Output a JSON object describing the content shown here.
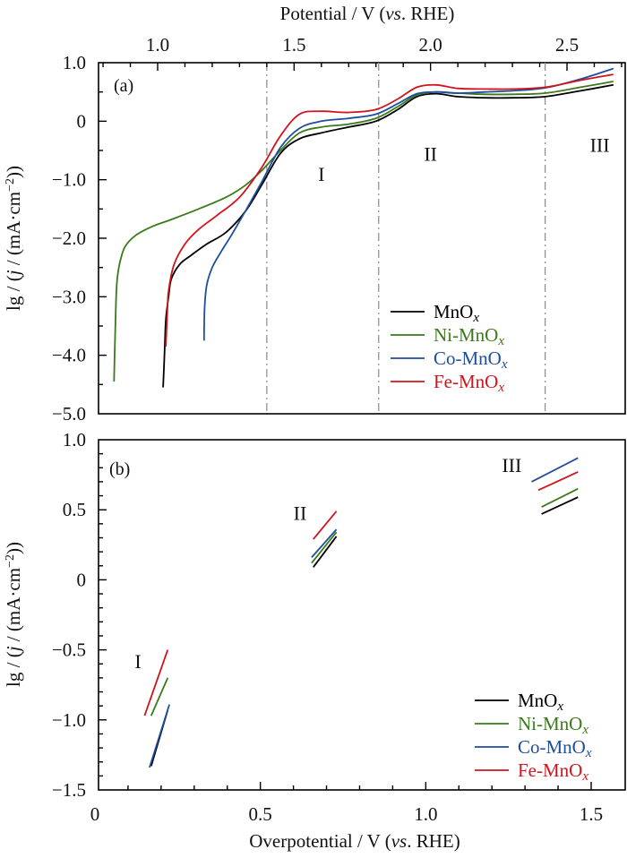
{
  "chart_data": [
    {
      "panel": "(a)",
      "type": "line",
      "top_xlabel": "Potential / V (vs. RHE)",
      "ylabel": "lg / (j / (mA·cm⁻²))",
      "xlim": [
        0.78,
        2.72
      ],
      "ylim": [
        -5.0,
        1.0
      ],
      "xticks": [
        1.0,
        1.5,
        2.0,
        2.5
      ],
      "xtick_labels": [
        "1.0",
        "1.5",
        "2.0",
        "2.5"
      ],
      "yticks": [
        1.0,
        0,
        -1.0,
        -2.0,
        -3.0,
        -4.0,
        -5.0
      ],
      "ytick_labels": [
        "1.0",
        "0",
        "−1.0",
        "−2.0",
        "−3.0",
        "−4.0",
        "−5.0"
      ],
      "region_dividers": [
        1.4,
        1.81,
        2.42
      ],
      "region_labels": [
        {
          "text": "I",
          "x": 1.6,
          "y": -0.9
        },
        {
          "text": "II",
          "x": 2.0,
          "y": -0.55
        },
        {
          "text": "III",
          "x": 2.62,
          "y": -0.4
        }
      ],
      "legend": {
        "position": "lower-right",
        "entries": [
          "MnOx",
          "Ni-MnOx",
          "Co-MnOx",
          "Fe-MnOx"
        ]
      },
      "series": [
        {
          "name": "MnOx",
          "color": "#000000",
          "x": [
            1.02,
            1.025,
            1.03,
            1.04,
            1.05,
            1.08,
            1.12,
            1.18,
            1.25,
            1.32,
            1.38,
            1.45,
            1.52,
            1.6,
            1.7,
            1.8,
            1.88,
            1.95,
            2.02,
            2.1,
            2.2,
            2.3,
            2.42,
            2.55,
            2.67
          ],
          "y": [
            -4.55,
            -4.0,
            -3.4,
            -3.0,
            -2.7,
            -2.45,
            -2.3,
            -2.1,
            -1.9,
            -1.55,
            -1.1,
            -0.55,
            -0.3,
            -0.2,
            -0.1,
            0.0,
            0.2,
            0.42,
            0.47,
            0.42,
            0.4,
            0.4,
            0.42,
            0.52,
            0.62
          ]
        },
        {
          "name": "Ni-MnOx",
          "color": "#3a7a1a",
          "x": [
            0.84,
            0.845,
            0.85,
            0.86,
            0.88,
            0.92,
            0.98,
            1.05,
            1.15,
            1.25,
            1.32,
            1.38,
            1.45,
            1.52,
            1.6,
            1.7,
            1.8,
            1.88,
            1.95,
            2.02,
            2.1,
            2.2,
            2.3,
            2.42,
            2.55,
            2.67
          ],
          "y": [
            -4.45,
            -3.5,
            -2.8,
            -2.45,
            -2.15,
            -1.95,
            -1.8,
            -1.68,
            -1.5,
            -1.3,
            -1.1,
            -0.85,
            -0.5,
            -0.2,
            -0.1,
            -0.05,
            0.05,
            0.25,
            0.45,
            0.5,
            0.48,
            0.46,
            0.46,
            0.48,
            0.58,
            0.68
          ]
        },
        {
          "name": "Co-MnOx",
          "color": "#1f4e9c",
          "x": [
            1.17,
            1.172,
            1.18,
            1.2,
            1.23,
            1.27,
            1.32,
            1.38,
            1.45,
            1.52,
            1.6,
            1.7,
            1.8,
            1.88,
            1.95,
            2.02,
            2.1,
            2.2,
            2.3,
            2.42,
            2.55,
            2.67
          ],
          "y": [
            -3.75,
            -3.2,
            -2.8,
            -2.5,
            -2.25,
            -1.95,
            -1.55,
            -1.05,
            -0.45,
            -0.12,
            0.0,
            0.05,
            0.12,
            0.3,
            0.47,
            0.5,
            0.48,
            0.5,
            0.52,
            0.57,
            0.72,
            0.9
          ]
        },
        {
          "name": "Fe-MnOx",
          "color": "#d0141c",
          "x": [
            1.03,
            1.035,
            1.04,
            1.06,
            1.1,
            1.15,
            1.22,
            1.3,
            1.38,
            1.45,
            1.52,
            1.6,
            1.7,
            1.8,
            1.88,
            1.95,
            2.02,
            2.1,
            2.2,
            2.3,
            2.42,
            2.55,
            2.67
          ],
          "y": [
            -3.85,
            -3.3,
            -2.9,
            -2.45,
            -2.1,
            -1.85,
            -1.6,
            -1.3,
            -0.8,
            -0.25,
            0.12,
            0.17,
            0.15,
            0.2,
            0.38,
            0.58,
            0.62,
            0.56,
            0.55,
            0.55,
            0.58,
            0.7,
            0.8
          ]
        }
      ]
    },
    {
      "panel": "(b)",
      "type": "line",
      "xlabel": "Overpotential / V (vs. RHE)",
      "ylabel": "lg / (j / (mA·cm⁻²))",
      "xlim": [
        0,
        1.6
      ],
      "ylim": [
        -1.5,
        1.0
      ],
      "xticks": [
        0,
        0.5,
        1.0,
        1.5
      ],
      "xtick_labels": [
        "0",
        "0.5",
        "1.0",
        "1.5"
      ],
      "yticks": [
        1.0,
        0.5,
        0,
        -0.5,
        -1.0,
        -1.5
      ],
      "ytick_labels": [
        "1.0",
        "0.5",
        "0",
        "−0.5",
        "−1.0",
        "−1.5"
      ],
      "region_labels": [
        {
          "text": "I",
          "x": 0.13,
          "y": -0.58
        },
        {
          "text": "II",
          "x": 0.62,
          "y": 0.48
        },
        {
          "text": "III",
          "x": 1.26,
          "y": 0.82
        }
      ],
      "legend": {
        "position": "lower-right",
        "entries": [
          "MnOx",
          "Ni-MnOx",
          "Co-MnOx",
          "Fe-MnOx"
        ]
      },
      "series": [
        {
          "name": "MnOx",
          "color": "#000000",
          "segments": [
            {
              "region": "I",
              "x": [
                0.17,
                0.22
              ],
              "y": [
                -1.33,
                -0.93
              ]
            },
            {
              "region": "II",
              "x": [
                0.66,
                0.73
              ],
              "y": [
                0.09,
                0.31
              ]
            },
            {
              "region": "III",
              "x": [
                1.35,
                1.46
              ],
              "y": [
                0.47,
                0.59
              ]
            }
          ]
        },
        {
          "name": "Ni-MnOx",
          "color": "#3a7a1a",
          "segments": [
            {
              "region": "I",
              "x": [
                0.17,
                0.22
              ],
              "y": [
                -0.97,
                -0.7
              ]
            },
            {
              "region": "II",
              "x": [
                0.655,
                0.73
              ],
              "y": [
                0.12,
                0.34
              ]
            },
            {
              "region": "III",
              "x": [
                1.35,
                1.46
              ],
              "y": [
                0.52,
                0.65
              ]
            }
          ]
        },
        {
          "name": "Co-MnOx",
          "color": "#1f4e9c",
          "segments": [
            {
              "region": "I",
              "x": [
                0.165,
                0.225
              ],
              "y": [
                -1.34,
                -0.89
              ]
            },
            {
              "region": "II",
              "x": [
                0.655,
                0.73
              ],
              "y": [
                0.16,
                0.36
              ]
            },
            {
              "region": "III",
              "x": [
                1.32,
                1.46
              ],
              "y": [
                0.7,
                0.87
              ]
            }
          ]
        },
        {
          "name": "Fe-MnOx",
          "color": "#d0141c",
          "segments": [
            {
              "region": "I",
              "x": [
                0.15,
                0.22
              ],
              "y": [
                -0.97,
                -0.5
              ]
            },
            {
              "region": "II",
              "x": [
                0.66,
                0.73
              ],
              "y": [
                0.29,
                0.49
              ]
            },
            {
              "region": "III",
              "x": [
                1.34,
                1.46
              ],
              "y": [
                0.64,
                0.77
              ]
            }
          ]
        }
      ]
    }
  ],
  "labels": {
    "top_xlabel_main": "Potential / V (",
    "top_xlabel_italic": "vs",
    "top_xlabel_tail": ". RHE)",
    "bottom_xlabel_main": "Overpotential / V (",
    "bottom_xlabel_italic": "vs",
    "bottom_xlabel_tail": ". RHE)",
    "ylabel_pre": "lg / (",
    "ylabel_j": "j",
    "ylabel_mid": " / (mA·cm",
    "ylabel_sup": "−2",
    "ylabel_post": "))",
    "panel_a": "(a)",
    "panel_b": "(b)",
    "legend_sub": "x",
    "legend_bases": [
      "MnO",
      "Ni-MnO",
      "Co-MnO",
      "Fe-MnO"
    ]
  }
}
